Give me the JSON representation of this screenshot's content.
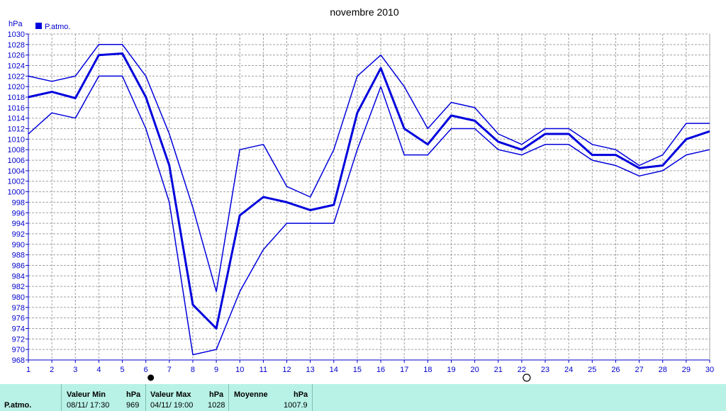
{
  "chart_data": {
    "type": "line",
    "title": "novembre 2010",
    "ylabel": "hPa",
    "legend": "P.atmo.",
    "ylim": [
      968,
      1030
    ],
    "ytick_step": 2,
    "x": [
      1,
      2,
      3,
      4,
      5,
      6,
      7,
      8,
      9,
      10,
      11,
      12,
      13,
      14,
      15,
      16,
      17,
      18,
      19,
      20,
      21,
      22,
      23,
      24,
      25,
      26,
      27,
      28,
      29,
      30
    ],
    "series": [
      {
        "role": "max",
        "values": [
          1022,
          1021,
          1022,
          1028,
          1028,
          1022,
          1011,
          997,
          981,
          1008,
          1009,
          1001,
          999,
          1008,
          1022,
          1026,
          1020,
          1012,
          1017,
          1016,
          1011,
          1009,
          1012,
          1012,
          1009,
          1008,
          1005,
          1007,
          1013,
          1013
        ]
      },
      {
        "role": "mean",
        "values": [
          1018,
          1019,
          1017.8,
          1026,
          1026.3,
          1018,
          1005,
          978.5,
          974,
          995.5,
          999,
          998,
          996.5,
          997.5,
          1015,
          1023.5,
          1012,
          1009,
          1014.5,
          1013.5,
          1009.5,
          1008,
          1011,
          1011,
          1007,
          1007,
          1004.5,
          1005,
          1010,
          1011.5
        ]
      },
      {
        "role": "min",
        "values": [
          1011,
          1015,
          1014,
          1022,
          1022,
          1012,
          998,
          969,
          970,
          981,
          989,
          994,
          994,
          994,
          1008,
          1020,
          1007,
          1007,
          1012,
          1012,
          1008,
          1007,
          1009,
          1009,
          1006,
          1005,
          1003,
          1004,
          1007,
          1008
        ]
      }
    ],
    "markers": [
      {
        "x": 6,
        "type": "new-moon"
      },
      {
        "x": 22,
        "type": "full-moon"
      }
    ],
    "colors": {
      "line": "#0000dd",
      "grid": "#a0a0a0",
      "axis": "#0000cc",
      "footer_bg": "#b8f2e6"
    }
  },
  "footer": {
    "row_label": "P.atmo.",
    "min_label": "Valeur Min",
    "min_unit": "hPa",
    "min_date": "08/11/ 17:30",
    "min_value": "969",
    "max_label": "Valeur Max",
    "max_unit": "hPa",
    "max_date": "04/11/ 19:00",
    "max_value": "1028",
    "avg_label": "Moyenne",
    "avg_unit": "hPa",
    "avg_value": "1007.9"
  }
}
